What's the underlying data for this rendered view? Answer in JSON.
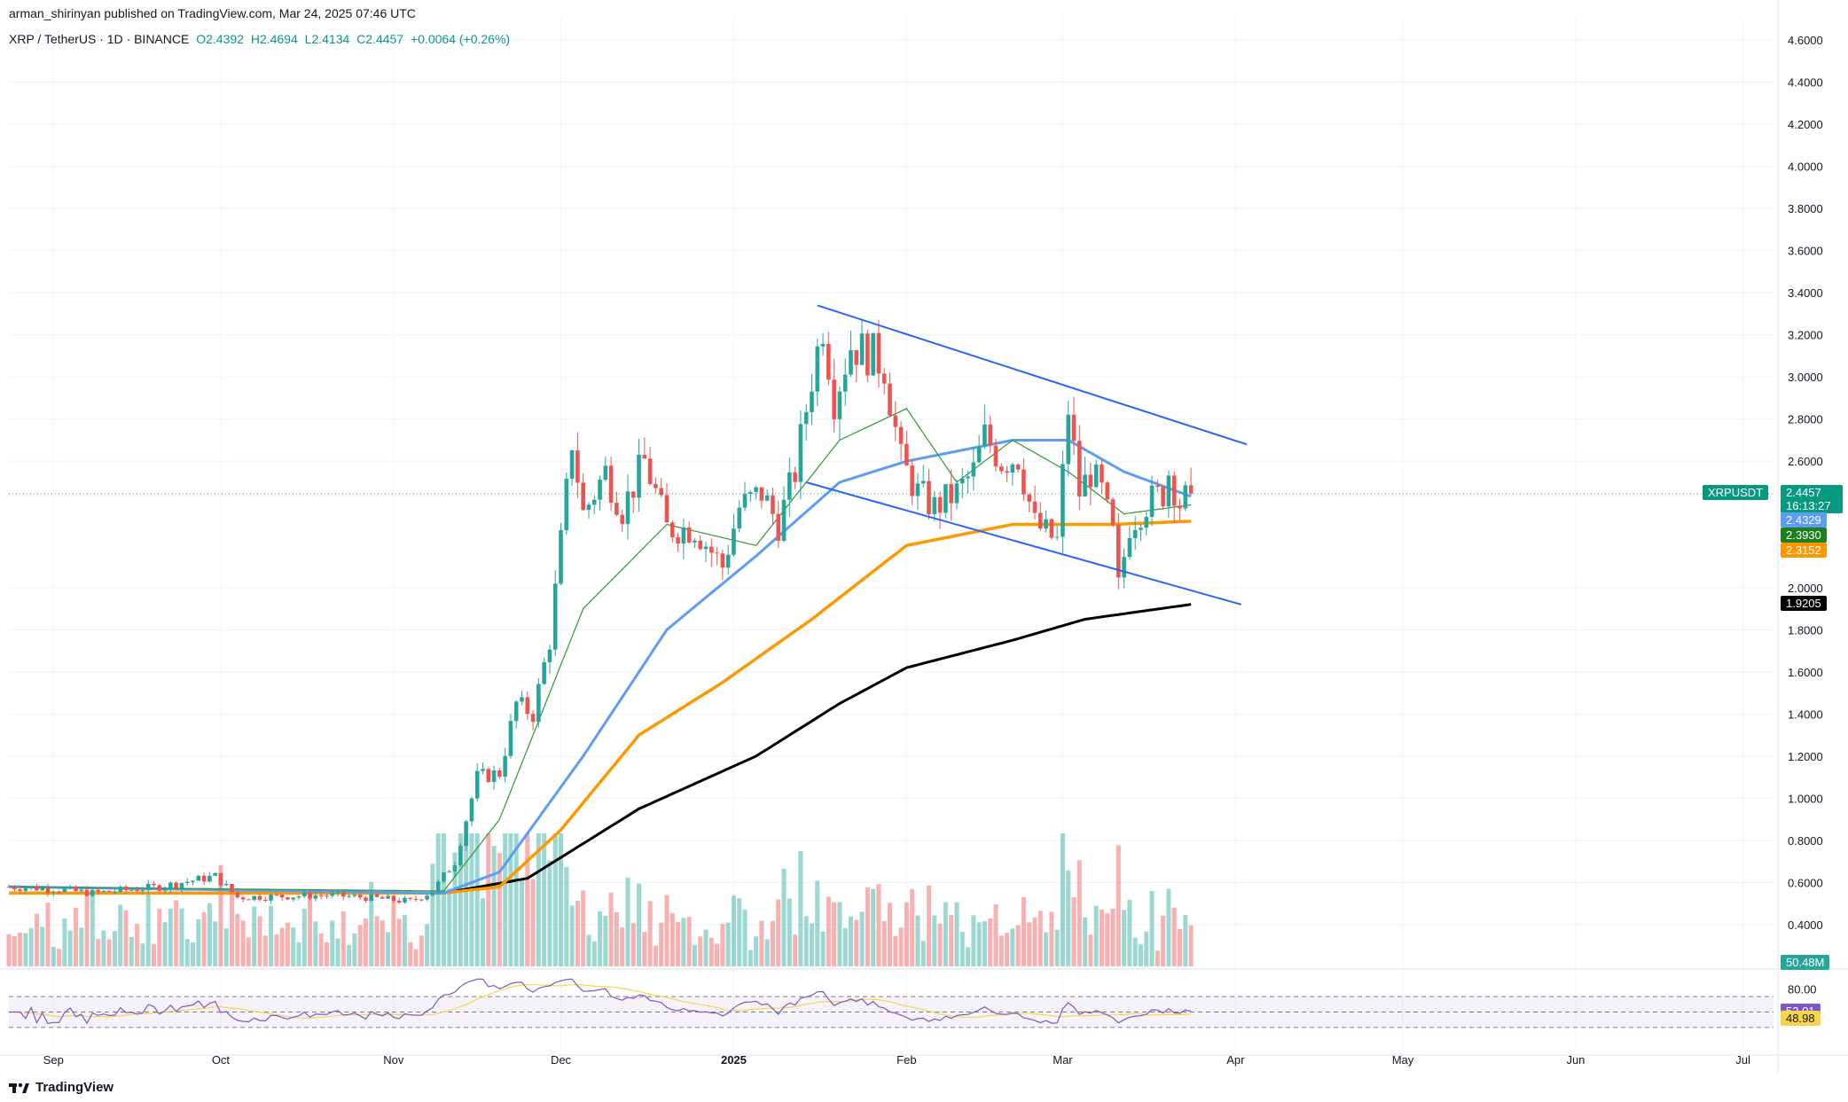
{
  "header": {
    "publisher": "arman_shirinyan published on TradingView.com, Mar 24, 2025 07:46 UTC",
    "symbol": "XRP / TetherUS · 1D · BINANCE",
    "open": "O2.4392",
    "high": "H2.4694",
    "low": "L2.4134",
    "close": "C2.4457",
    "change": "+0.0064 (+0.26%)"
  },
  "footer": {
    "brand": "TradingView"
  },
  "badges": {
    "ticker": "XRPUSDT",
    "price": "2.4457",
    "countdown": "16:13:27",
    "ma_blue": "2.4329",
    "ma_green": "2.3930",
    "ma_orange": "2.3152",
    "ma_black": "1.9205",
    "volume": "50.48M",
    "rsi": "52.01",
    "rsi_ma": "48.98"
  },
  "colors": {
    "up": "#26a69a",
    "down": "#ef5350",
    "ma_blue": "#5b9cf6",
    "ma_green": "#2e9a2e",
    "ma_orange": "#ff9800",
    "ma_black": "#000000",
    "trendline": "#2962ff",
    "rsi_line": "#7e57c2",
    "rsi_ma": "#f7d54b"
  },
  "chart_data": {
    "type": "candlestick",
    "y_axis_ticks": [
      "4.6000",
      "4.4000",
      "4.2000",
      "4.0000",
      "3.8000",
      "3.6000",
      "3.4000",
      "3.2000",
      "3.0000",
      "2.8000",
      "2.6000",
      "2.0000",
      "1.8000",
      "1.6000",
      "1.4000",
      "1.2000",
      "1.0000",
      "0.8000",
      "0.6000",
      "0.4000"
    ],
    "ylim": [
      0.2,
      4.7
    ],
    "x_axis_labels": [
      "Sep",
      "Oct",
      "Nov",
      "Dec",
      "2025",
      "Feb",
      "Mar",
      "Apr",
      "May",
      "Jun",
      "Jul"
    ],
    "rsi_ticks": [
      "80.00"
    ],
    "price_anchors": [
      [
        "2024-08-24",
        0.58
      ],
      [
        "2024-09-01",
        0.57
      ],
      [
        "2024-09-08",
        0.55
      ],
      [
        "2024-09-20",
        0.58
      ],
      [
        "2024-09-30",
        0.63
      ],
      [
        "2024-10-04",
        0.53
      ],
      [
        "2024-10-20",
        0.54
      ],
      [
        "2024-10-27",
        0.53
      ],
      [
        "2024-11-04",
        0.51
      ],
      [
        "2024-11-08",
        0.56
      ],
      [
        "2024-11-12",
        0.7
      ],
      [
        "2024-11-16",
        1.1
      ],
      [
        "2024-11-20",
        1.12
      ],
      [
        "2024-11-23",
        1.45
      ],
      [
        "2024-11-26",
        1.4
      ],
      [
        "2024-11-29",
        1.75
      ],
      [
        "2024-12-02",
        2.45
      ],
      [
        "2024-12-03",
        2.7
      ],
      [
        "2024-12-05",
        2.35
      ],
      [
        "2024-12-09",
        2.55
      ],
      [
        "2024-12-12",
        2.37
      ],
      [
        "2024-12-16",
        2.6
      ],
      [
        "2024-12-18",
        2.45
      ],
      [
        "2024-12-20",
        2.28
      ],
      [
        "2024-12-25",
        2.28
      ],
      [
        "2024-12-30",
        2.1
      ],
      [
        "2025-01-02",
        2.38
      ],
      [
        "2025-01-06",
        2.45
      ],
      [
        "2025-01-09",
        2.3
      ],
      [
        "2025-01-12",
        2.55
      ],
      [
        "2025-01-15",
        3.0
      ],
      [
        "2025-01-17",
        3.25
      ],
      [
        "2025-01-19",
        2.9
      ],
      [
        "2025-01-22",
        3.15
      ],
      [
        "2025-01-26",
        3.1
      ],
      [
        "2025-01-28",
        3.05
      ],
      [
        "2025-01-31",
        2.6
      ],
      [
        "2025-02-03",
        2.45
      ],
      [
        "2025-02-06",
        2.38
      ],
      [
        "2025-02-10",
        2.45
      ],
      [
        "2025-02-13",
        2.55
      ],
      [
        "2025-02-15",
        2.72
      ],
      [
        "2025-02-18",
        2.6
      ],
      [
        "2025-02-21",
        2.62
      ],
      [
        "2025-02-24",
        2.3
      ],
      [
        "2025-02-28",
        2.22
      ],
      [
        "2025-03-02",
        2.85
      ],
      [
        "2025-03-04",
        2.45
      ],
      [
        "2025-03-06",
        2.55
      ],
      [
        "2025-03-08",
        2.45
      ],
      [
        "2025-03-10",
        2.25
      ],
      [
        "2025-03-11",
        2.0
      ],
      [
        "2025-03-13",
        2.3
      ],
      [
        "2025-03-16",
        2.4
      ],
      [
        "2025-03-19",
        2.45
      ],
      [
        "2025-03-20",
        2.55
      ],
      [
        "2025-03-22",
        2.4
      ],
      [
        "2025-03-24",
        2.4457
      ]
    ],
    "moving_averages": {
      "blue": [
        [
          "2024-08-24",
          0.58
        ],
        [
          "2024-11-10",
          0.55
        ],
        [
          "2024-11-20",
          0.65
        ],
        [
          "2024-12-05",
          1.2
        ],
        [
          "2024-12-20",
          1.8
        ],
        [
          "2025-01-05",
          2.15
        ],
        [
          "2025-01-20",
          2.5
        ],
        [
          "2025-02-01",
          2.6
        ],
        [
          "2025-02-20",
          2.7
        ],
        [
          "2025-03-02",
          2.7
        ],
        [
          "2025-03-12",
          2.55
        ],
        [
          "2025-03-24",
          2.4329
        ]
      ],
      "green": [
        [
          "2024-08-24",
          0.58
        ],
        [
          "2024-11-10",
          0.56
        ],
        [
          "2024-11-20",
          0.9
        ],
        [
          "2024-12-05",
          1.9
        ],
        [
          "2024-12-20",
          2.3
        ],
        [
          "2025-01-05",
          2.2
        ],
        [
          "2025-01-20",
          2.7
        ],
        [
          "2025-02-01",
          2.85
        ],
        [
          "2025-02-10",
          2.5
        ],
        [
          "2025-02-20",
          2.7
        ],
        [
          "2025-03-02",
          2.55
        ],
        [
          "2025-03-12",
          2.35
        ],
        [
          "2025-03-24",
          2.393
        ]
      ],
      "orange": [
        [
          "2024-08-24",
          0.55
        ],
        [
          "2024-11-10",
          0.55
        ],
        [
          "2024-11-20",
          0.58
        ],
        [
          "2024-12-01",
          0.85
        ],
        [
          "2024-12-15",
          1.3
        ],
        [
          "2024-12-30",
          1.55
        ],
        [
          "2025-01-15",
          1.85
        ],
        [
          "2025-02-01",
          2.2
        ],
        [
          "2025-02-20",
          2.3
        ],
        [
          "2025-03-10",
          2.3
        ],
        [
          "2025-03-24",
          2.3152
        ]
      ],
      "black": [
        [
          "2024-08-24",
          0.55
        ],
        [
          "2024-11-10",
          0.55
        ],
        [
          "2024-11-25",
          0.62
        ],
        [
          "2024-12-15",
          0.95
        ],
        [
          "2025-01-05",
          1.2
        ],
        [
          "2025-01-20",
          1.45
        ],
        [
          "2025-02-01",
          1.62
        ],
        [
          "2025-02-20",
          1.75
        ],
        [
          "2025-03-05",
          1.85
        ],
        [
          "2025-03-24",
          1.9205
        ]
      ]
    },
    "trendlines": [
      {
        "from": [
          "2025-01-16",
          3.34
        ],
        "to": [
          "2025-04-03",
          2.68
        ]
      },
      {
        "from": [
          "2025-01-14",
          2.5
        ],
        "to": [
          "2025-04-02",
          1.92
        ]
      }
    ]
  }
}
